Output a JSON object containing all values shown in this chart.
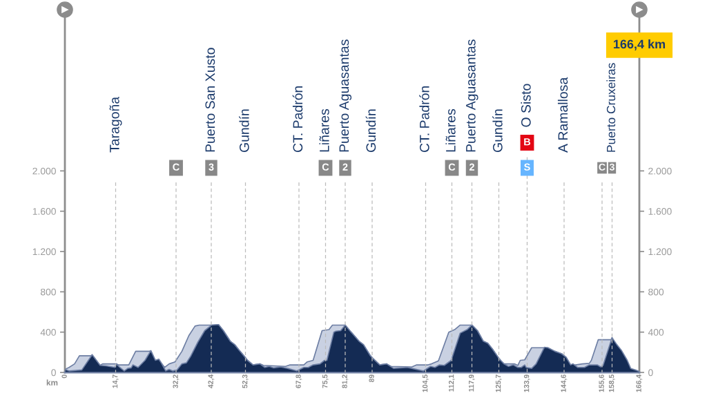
{
  "chart_data": {
    "type": "area",
    "xlabel": "km",
    "series": [
      {
        "color": "#c9d1e2",
        "x": [
          0,
          1.2,
          2.8,
          4.2,
          7.5,
          7.9,
          10.2,
          10.9,
          14.9,
          15.5,
          18.5,
          20.5,
          24.5,
          24.9,
          26.2,
          27.2,
          27.9,
          28.9,
          30.2,
          31.9,
          33.9,
          35.9,
          37.7,
          38.9,
          42.5,
          44.5,
          45.9,
          47.9,
          49.2,
          50.5,
          52.2,
          52.9,
          54.5,
          56.5,
          57.5,
          63.9,
          65.2,
          69.2,
          70.2,
          71.9,
          74.5,
          76.5,
          77.5,
          81.2,
          82.9,
          85.2,
          86.5,
          88.5,
          89.2,
          91.2,
          93.2,
          94.5,
          100.5,
          101.9,
          105.2,
          106.2,
          107.5,
          108.2,
          111.2,
          112.9,
          114.5,
          117.9,
          119.5,
          121.2,
          122.5,
          123.9,
          125.5,
          126.2,
          127.2,
          130.2,
          131.2,
          131.9,
          133.2,
          135.2,
          138.9,
          139.9,
          141.9,
          143.9,
          145.2,
          146.5,
          147.9,
          149.9,
          151.9,
          152.5,
          154.5,
          158.2,
          158.5
        ],
        "values": [
          30,
          50,
          85,
          165,
          165,
          175,
          70,
          85,
          85,
          75,
          75,
          210,
          210,
          215,
          120,
          130,
          95,
          50,
          85,
          105,
          210,
          365,
          460,
          470,
          470,
          475,
          415,
          310,
          275,
          220,
          150,
          120,
          75,
          85,
          70,
          60,
          75,
          75,
          105,
          120,
          415,
          425,
          470,
          470,
          400,
          310,
          275,
          165,
          140,
          75,
          85,
          60,
          55,
          75,
          75,
          85,
          105,
          115,
          400,
          425,
          470,
          470,
          415,
          310,
          290,
          230,
          150,
          120,
          85,
          85,
          70,
          120,
          125,
          245,
          245,
          245,
          210,
          185,
          150,
          75,
          75,
          85,
          90,
          120,
          325,
          325,
          345
        ]
      },
      {
        "color": "#142b54",
        "x": [
          0,
          1.2,
          3.2,
          4.9,
          7.9,
          10.2,
          11.9,
          14.5,
          14.9,
          15.9,
          17.2,
          18.2,
          19.2,
          19.7,
          21.2,
          23.2,
          24.9,
          26.2,
          27.2,
          27.9,
          29.2,
          30.2,
          31.2,
          32.5,
          33.9,
          35.2,
          36.5,
          38.5,
          40.5,
          42.5,
          44.5,
          45.9,
          47.9,
          49.2,
          50.5,
          52.2,
          52.9,
          54.5,
          56.5,
          57.9,
          59.2,
          60.5,
          62.5,
          64.5,
          67.2,
          69.2,
          70.5,
          71.9,
          73.9,
          75.2,
          75.9,
          77.9,
          78.5,
          79.9,
          81.2,
          82.9,
          85.2,
          86.5,
          88.5,
          89.2,
          91.2,
          93.2,
          95.2,
          99.2,
          100.5,
          103.9,
          105.9,
          107.2,
          108.5,
          109.9,
          111.9,
          113.2,
          114.5,
          116.5,
          117.9,
          119.5,
          121.2,
          122.5,
          123.9,
          125.5,
          126.2,
          127.2,
          128.5,
          129.9,
          131.2,
          132.2,
          133.2,
          133.6,
          135.2,
          136.5,
          138.9,
          139.9,
          141.9,
          143.9,
          145.2,
          146.5,
          147.2,
          148.5,
          150.5,
          151.9,
          153.2,
          154.2,
          155.2,
          155.9,
          158.5,
          159.9,
          161.2,
          162.9,
          163.9,
          165.2,
          166.4
        ],
        "values": [
          30,
          15,
          20,
          25,
          175,
          70,
          65,
          50,
          85,
          50,
          15,
          40,
          45,
          75,
          50,
          120,
          215,
          120,
          130,
          95,
          15,
          30,
          15,
          25,
          85,
          95,
          165,
          300,
          415,
          470,
          475,
          415,
          310,
          275,
          220,
          150,
          120,
          75,
          85,
          50,
          60,
          45,
          55,
          40,
          15,
          50,
          50,
          75,
          85,
          120,
          120,
          400,
          410,
          415,
          470,
          400,
          310,
          275,
          165,
          140,
          75,
          85,
          40,
          50,
          40,
          15,
          60,
          50,
          75,
          70,
          120,
          255,
          390,
          425,
          470,
          415,
          310,
          290,
          230,
          150,
          120,
          85,
          60,
          75,
          50,
          50,
          75,
          50,
          40,
          85,
          250,
          245,
          210,
          185,
          150,
          75,
          85,
          50,
          50,
          75,
          75,
          75,
          55,
          70,
          345,
          275,
          220,
          120,
          40,
          25,
          10
        ]
      }
    ],
    "xlim": [
      0,
      166.4
    ],
    "xticks": [
      0,
      {
        "value": 14.7,
        "label": "14,7"
      },
      {
        "value": 32.2,
        "label": "32,2"
      },
      {
        "value": 42.4,
        "label": "42,4"
      },
      {
        "value": 52.3,
        "label": "52,3"
      },
      {
        "value": 67.8,
        "label": "67,8"
      },
      {
        "value": 75.5,
        "label": "75,5"
      },
      {
        "value": 81.2,
        "label": "81,2"
      },
      89,
      {
        "value": 104.5,
        "label": "104,5"
      },
      {
        "value": 112.1,
        "label": "112,1"
      },
      {
        "value": 117.9,
        "label": "117,9"
      },
      {
        "value": 125.7,
        "label": "125,7"
      },
      {
        "value": 133.9,
        "label": "133,9"
      },
      {
        "value": 144.6,
        "label": "144,6"
      },
      {
        "value": 155.6,
        "label": "155,6"
      },
      {
        "value": 158.5,
        "label": "158,5"
      },
      {
        "value": 166.4,
        "label": "166,4"
      }
    ],
    "ylim": [
      0,
      3600
    ],
    "yticks": [
      0,
      400,
      800,
      {
        "value": 1200,
        "label": "1.200"
      },
      {
        "value": 1600,
        "label": "1.600"
      },
      {
        "value": 2000,
        "label": "2.000"
      }
    ],
    "y2lim": [
      0,
      3600
    ],
    "y2ticks": [
      0,
      400,
      800,
      {
        "value": 1200,
        "label": "1.200"
      },
      {
        "value": 1600,
        "label": "1.600"
      },
      {
        "value": 2000,
        "label": "2.000"
      }
    ],
    "ref_lines": [
      {
        "axis": "x",
        "value": 14.7,
        "label": "Taragoña",
        "color": "#bbbbbb",
        "line_style": "dashed"
      },
      {
        "axis": "x",
        "value": 32.2,
        "color": "#bbbbbb",
        "line_style": "dashed"
      },
      {
        "axis": "x",
        "value": 42.4,
        "label": "Puerto San Xusto",
        "color": "#bbbbbb",
        "line_style": "dashed"
      },
      {
        "axis": "x",
        "value": 52.3,
        "label": "Gundín",
        "color": "#bbbbbb",
        "line_style": "dashed"
      },
      {
        "axis": "x",
        "value": 67.8,
        "label": "CT. Padrón",
        "color": "#bbbbbb",
        "line_style": "dashed"
      },
      {
        "axis": "x",
        "value": 75.5,
        "label": "Liñares",
        "color": "#bbbbbb",
        "line_style": "dashed"
      },
      {
        "axis": "x",
        "value": 81.2,
        "label": "Puerto Aguasantas",
        "color": "#bbbbbb",
        "line_style": "dashed"
      },
      {
        "axis": "x",
        "value": 89,
        "label": "Gundín",
        "color": "#bbbbbb",
        "line_style": "dashed"
      },
      {
        "axis": "x",
        "value": 104.5,
        "label": "CT. Padrón",
        "color": "#bbbbbb",
        "line_style": "dashed"
      },
      {
        "axis": "x",
        "value": 112.1,
        "label": "Liñares",
        "color": "#bbbbbb",
        "line_style": "dashed"
      },
      {
        "axis": "x",
        "value": 117.9,
        "label": "Puerto Aguasantas",
        "color": "#bbbbbb",
        "line_style": "dashed"
      },
      {
        "axis": "x",
        "value": 125.7,
        "label": "Gundín",
        "color": "#bbbbbb",
        "line_style": "dashed"
      },
      {
        "axis": "x",
        "value": 133.9,
        "label": "O Sisto",
        "color": "#bbbbbb",
        "line_style": "dashed"
      },
      {
        "axis": "x",
        "value": 144.6,
        "label": "A Ramallosa",
        "color": "#bbbbbb",
        "line_style": "dashed"
      },
      {
        "axis": "x",
        "value": 155.6,
        "color": "#bbbbbb",
        "line_style": "dashed"
      },
      {
        "axis": "x",
        "value": 158.5,
        "label": "Puerto Cruxeiras",
        "color": "#bbbbbb",
        "line_style": "dashed"
      }
    ],
    "annotations": [
      {
        "text": "C",
        "x": 32.2,
        "y": 2030
      },
      {
        "text": "3",
        "x": 42.4,
        "y": 2030
      },
      {
        "text": "C",
        "x": 75.5,
        "y": 2030
      },
      {
        "text": "2",
        "x": 81.2,
        "y": 2030
      },
      {
        "text": "C",
        "x": 112.1,
        "y": 2030
      },
      {
        "text": "2",
        "x": 117.9,
        "y": 2030
      },
      {
        "text": "B",
        "x": 133.9,
        "y": 2280
      },
      {
        "text": "S",
        "x": 133.9,
        "y": 2030
      },
      {
        "text": "C",
        "x": 155.6,
        "y": 2030
      },
      {
        "text": "3",
        "x": 158.5,
        "y": 2030
      },
      "166,4 km"
    ]
  }
}
